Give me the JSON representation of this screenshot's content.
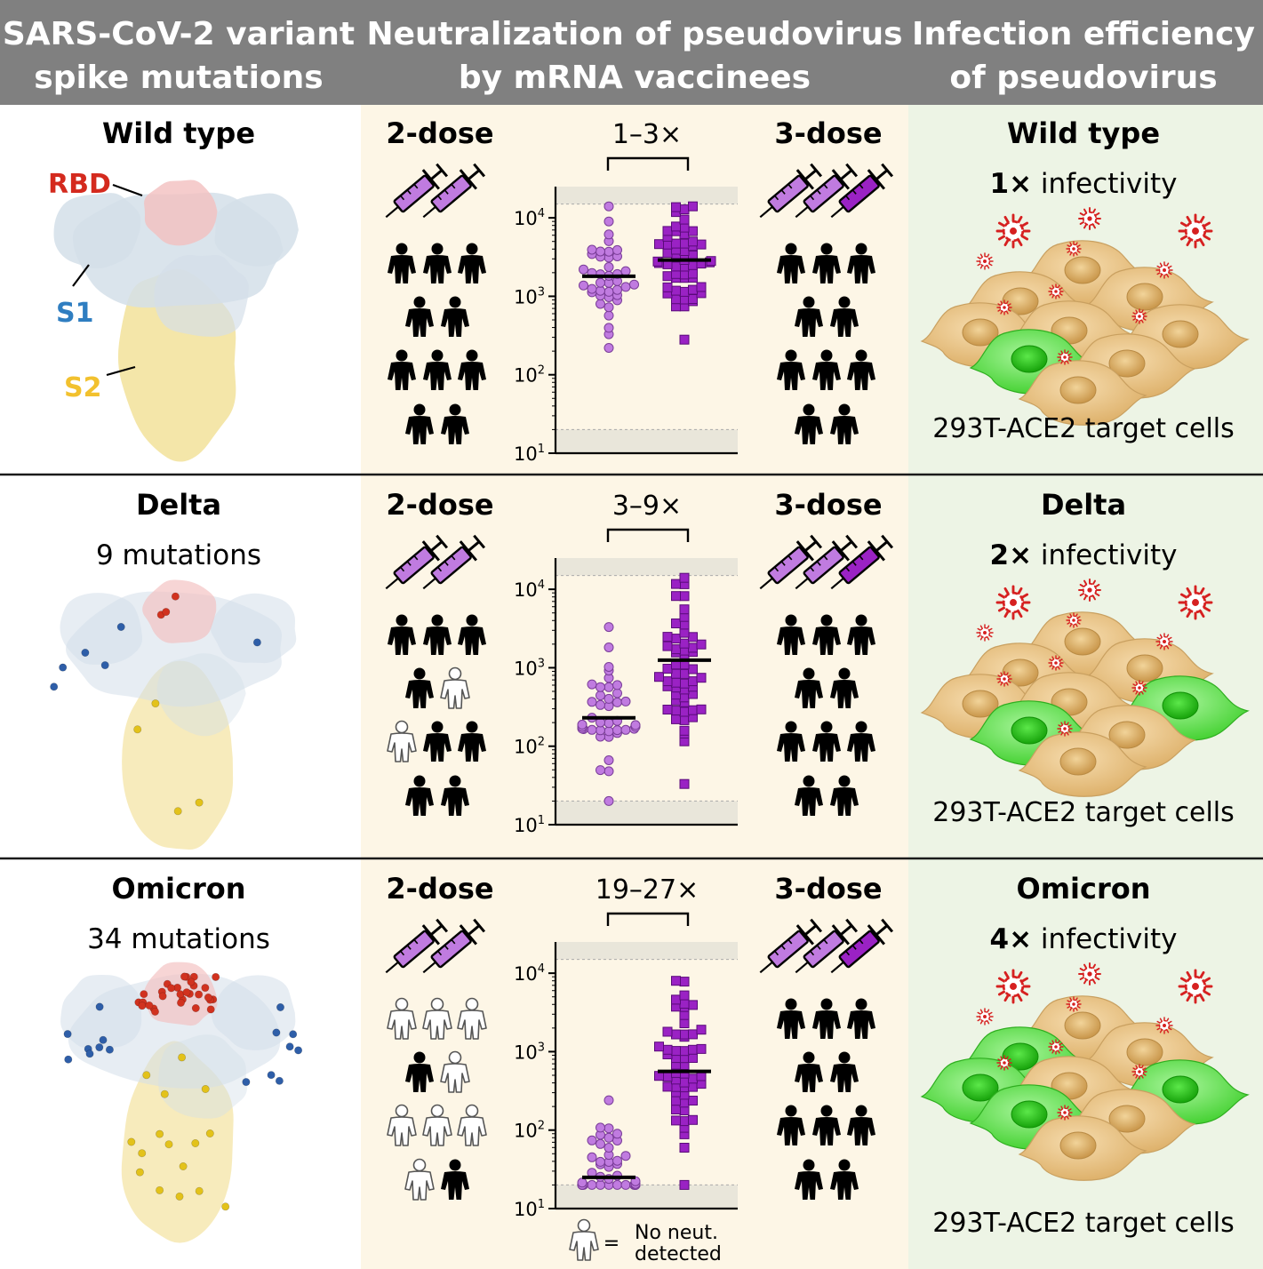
{
  "header": {
    "col1": [
      "SARS-CoV-2 variant",
      "spike mutations"
    ],
    "col2": [
      "Neutralization of pseudovirus",
      "by mRNA vaccinees"
    ],
    "col3": [
      "Infection efficiency",
      "of pseudovirus"
    ]
  },
  "colors": {
    "header_bg": "#808080",
    "neut_bg": "#fdf6e6",
    "infect_bg": "#edf4e5",
    "rbd": "#d42a1e",
    "s1": "#2f7ec1",
    "s2": "#f2c12e",
    "two_dose_marker": "#c07be0",
    "three_dose_marker": "#9a22c4",
    "infected_cell": "#4ddc3a",
    "host_cell": "#e8c384"
  },
  "domain_labels": {
    "rbd": "RBD",
    "s1": "S1",
    "s2": "S2"
  },
  "regimens": {
    "two_dose": "2-dose",
    "three_dose": "3-dose"
  },
  "target_cells_label": "293T-ACE2 target cells",
  "infectivity_word": "infectivity",
  "legend": {
    "text_line1": "No neut.",
    "text_line2": "detected",
    "equals": "=",
    "icon": "hollow-person-icon"
  },
  "y_axis_ticks": [
    {
      "base": "10",
      "exp": "4"
    },
    {
      "base": "10",
      "exp": "3"
    },
    {
      "base": "10",
      "exp": "2"
    },
    {
      "base": "10",
      "exp": "1"
    }
  ],
  "variants": [
    {
      "name": "Wild type",
      "mutations_label": "",
      "fold_change": "1–3×",
      "infectivity_value": "1×",
      "infected_cells": 1,
      "two_dose_no_neut": 0,
      "mutation_counts": {
        "rbd": 0,
        "s1": 0,
        "s2": 0
      },
      "chart_data": {
        "type": "scatter",
        "y_scale": "log10",
        "ylim": [
          10,
          25000
        ],
        "series": [
          {
            "name": "2-dose",
            "geometric_mean": 1800,
            "min": 220,
            "max": 14000,
            "n": 40,
            "marker": "circle"
          },
          {
            "name": "3-dose",
            "geometric_mean": 2900,
            "min": 280,
            "max": 14000,
            "n": 55,
            "marker": "square"
          }
        ]
      }
    },
    {
      "name": "Delta",
      "mutations_label": "9 mutations",
      "fold_change": "3–9×",
      "infectivity_value": "2×",
      "infected_cells": 2,
      "two_dose_no_neut": 2,
      "mutation_counts": {
        "rbd": 3,
        "s1": 6,
        "s2": 4
      },
      "chart_data": {
        "type": "scatter",
        "y_scale": "log10",
        "ylim": [
          10,
          25000
        ],
        "series": [
          {
            "name": "2-dose",
            "geometric_mean": 230,
            "min": 20,
            "max": 3300,
            "n": 40,
            "marker": "circle"
          },
          {
            "name": "3-dose",
            "geometric_mean": 1250,
            "min": 33,
            "max": 14000,
            "n": 55,
            "marker": "square"
          }
        ]
      }
    },
    {
      "name": "Omicron",
      "mutations_label": "34 mutations",
      "fold_change": "19–27×",
      "infectivity_value": "4×",
      "infected_cells": 4,
      "two_dose_no_neut": 8,
      "mutation_counts": {
        "rbd": 30,
        "s1": 16,
        "s2": 16
      },
      "chart_data": {
        "type": "scatter",
        "y_scale": "log10",
        "ylim": [
          10,
          25000
        ],
        "series": [
          {
            "name": "2-dose",
            "geometric_mean": 25,
            "min": 20,
            "max": 240,
            "n": 40,
            "marker": "circle"
          },
          {
            "name": "3-dose",
            "geometric_mean": 560,
            "min": 20,
            "max": 8000,
            "n": 55,
            "marker": "square"
          }
        ]
      }
    }
  ]
}
